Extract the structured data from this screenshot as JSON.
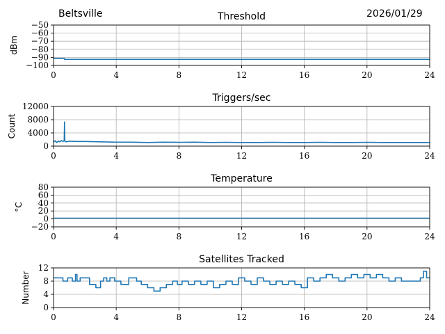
{
  "header": {
    "location": "Beltsville",
    "date": "2026/01/29"
  },
  "style": {
    "line_color": "#1f77b4",
    "grid_color": "#b0b0b0"
  },
  "chart_data": [
    {
      "type": "line",
      "title": "Threshold",
      "ylabel": "dBm",
      "xlim": [
        0,
        24
      ],
      "ylim": [
        -100,
        -50
      ],
      "xticks": [
        0,
        4,
        8,
        12,
        16,
        20,
        24
      ],
      "yticks": [
        -100,
        -90,
        -80,
        -70,
        -60,
        -50
      ],
      "grid": true,
      "series": [
        {
          "x": [
            0,
            0.7,
            0.7,
            24
          ],
          "y": [
            -91.5,
            -91.5,
            -92.5,
            -92.5
          ]
        }
      ]
    },
    {
      "type": "line",
      "title": "Triggers/sec",
      "ylabel": "Count",
      "xlim": [
        0,
        24
      ],
      "ylim": [
        0,
        12000
      ],
      "xticks": [
        0,
        4,
        8,
        12,
        16,
        20,
        24
      ],
      "yticks": [
        0,
        4000,
        8000,
        12000
      ],
      "grid": true,
      "series": [
        {
          "x": [
            0,
            0.1,
            0.2,
            0.3,
            0.4,
            0.5,
            0.6,
            0.68,
            0.7,
            0.72,
            0.8,
            1.0,
            1.5,
            2,
            3,
            4,
            5,
            6,
            7,
            8,
            9,
            10,
            11,
            12,
            13,
            14,
            15,
            16,
            17,
            18,
            19,
            20,
            21,
            22,
            23,
            24
          ],
          "y": [
            1200,
            1600,
            1100,
            1500,
            1300,
            1700,
            1400,
            1600,
            7300,
            1500,
            1300,
            1500,
            1400,
            1400,
            1300,
            1200,
            1200,
            1100,
            1200,
            1150,
            1200,
            1100,
            1150,
            1100,
            1100,
            1150,
            1100,
            1100,
            1150,
            1100,
            1100,
            1150,
            1100,
            1100,
            1100,
            1100
          ]
        }
      ]
    },
    {
      "type": "line",
      "title": "Temperature",
      "ylabel": "°C",
      "xlim": [
        0,
        24
      ],
      "ylim": [
        -20,
        80
      ],
      "xticks": [
        0,
        4,
        8,
        12,
        16,
        20,
        24
      ],
      "yticks": [
        -20,
        0,
        20,
        40,
        60,
        80
      ],
      "grid": true,
      "series": [
        {
          "x": [
            0,
            24
          ],
          "y": [
            2,
            2
          ]
        }
      ]
    },
    {
      "type": "line",
      "title": "Satellites Tracked",
      "ylabel": "Number",
      "xlim": [
        0,
        24
      ],
      "ylim": [
        0,
        12
      ],
      "xticks": [
        0,
        4,
        8,
        12,
        16,
        20,
        24
      ],
      "yticks": [
        0,
        4,
        8,
        12
      ],
      "grid": true,
      "series": [
        {
          "step": true,
          "x": [
            0,
            0.6,
            0.9,
            1.2,
            1.4,
            1.5,
            1.7,
            2.3,
            2.7,
            3.0,
            3.2,
            3.4,
            3.6,
            3.9,
            4.3,
            4.8,
            5.3,
            5.6,
            6.0,
            6.4,
            6.8,
            7.2,
            7.6,
            7.9,
            8.2,
            8.6,
            9.0,
            9.4,
            9.8,
            10.2,
            10.6,
            11.0,
            11.4,
            11.8,
            12.2,
            12.6,
            13.0,
            13.4,
            13.8,
            14.2,
            14.6,
            15.0,
            15.4,
            15.8,
            16.2,
            16.6,
            17.0,
            17.4,
            17.8,
            18.2,
            18.6,
            19.0,
            19.4,
            19.8,
            20.2,
            20.6,
            21.0,
            21.4,
            21.8,
            22.2,
            22.6,
            23.0,
            23.4,
            23.6,
            23.8,
            24.0
          ],
          "y": [
            9,
            8,
            9,
            8,
            10,
            8,
            9,
            7,
            6,
            8,
            9,
            8,
            9,
            8,
            7,
            9,
            8,
            7,
            6,
            5,
            6,
            7,
            8,
            7,
            8,
            7,
            8,
            7,
            8,
            6,
            7,
            8,
            7,
            9,
            8,
            7,
            9,
            8,
            7,
            8,
            7,
            8,
            7,
            6,
            9,
            8,
            9,
            10,
            9,
            8,
            9,
            10,
            9,
            10,
            9,
            10,
            9,
            8,
            9,
            8,
            8,
            8,
            9,
            11,
            9,
            9
          ]
        }
      ]
    }
  ]
}
